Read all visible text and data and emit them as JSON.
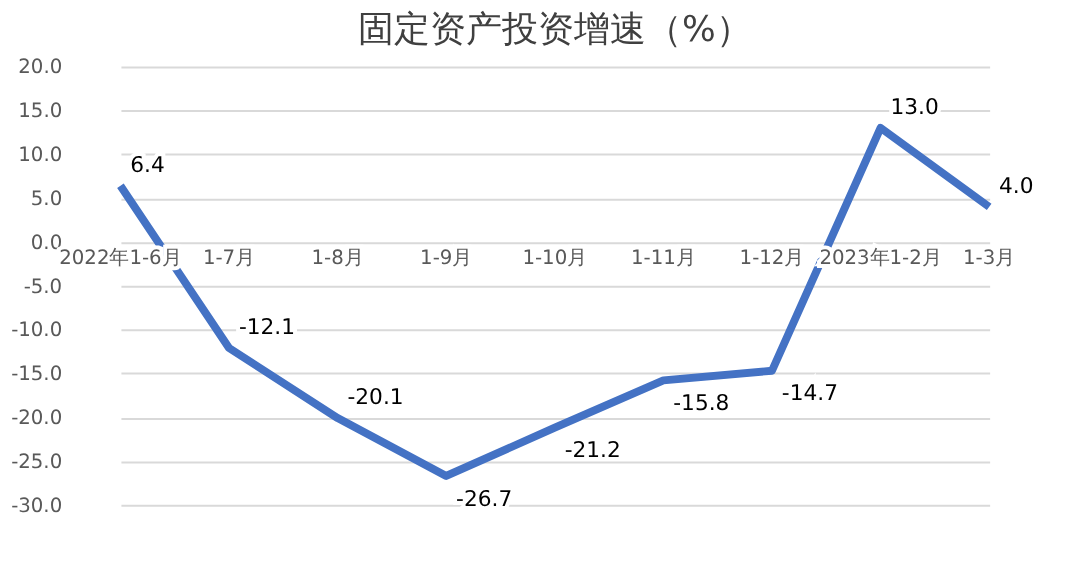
{
  "chart_data": {
    "type": "line",
    "title": "固定资产投资增速（%）",
    "categories": [
      "2022年1-6月",
      "1-7月",
      "1-8月",
      "1-9月",
      "1-10月",
      "1-11月",
      "1-12月",
      "2023年1-2月",
      "1-3月"
    ],
    "series": [
      {
        "color": "#4472c4",
        "values": [
          6.4,
          -12.1,
          -20.1,
          -26.7,
          -21.2,
          -15.8,
          -14.7,
          13.0,
          4.0
        ],
        "value_labels": [
          "6.4",
          "-12.1",
          "-20.1",
          "-26.7",
          "-21.2",
          "-15.8",
          "-14.7",
          "13.0",
          "4.0"
        ]
      }
    ],
    "ylim": [
      -30,
      20
    ],
    "yticks": [
      {
        "value": 20,
        "label": "20.0"
      },
      {
        "value": 15,
        "label": "15.0"
      },
      {
        "value": 10,
        "label": "10.0"
      },
      {
        "value": 5,
        "label": "5.0"
      },
      {
        "value": 0,
        "label": "0.0"
      },
      {
        "value": -5,
        "label": "-5.0"
      },
      {
        "value": -10,
        "label": "-10.0"
      },
      {
        "value": -15,
        "label": "-15.0"
      },
      {
        "value": -20,
        "label": "-20.0"
      },
      {
        "value": -25,
        "label": "-25.0"
      },
      {
        "value": -30,
        "label": "-30.0"
      }
    ],
    "grid": "y",
    "marker": "none",
    "line_style": "solid"
  }
}
